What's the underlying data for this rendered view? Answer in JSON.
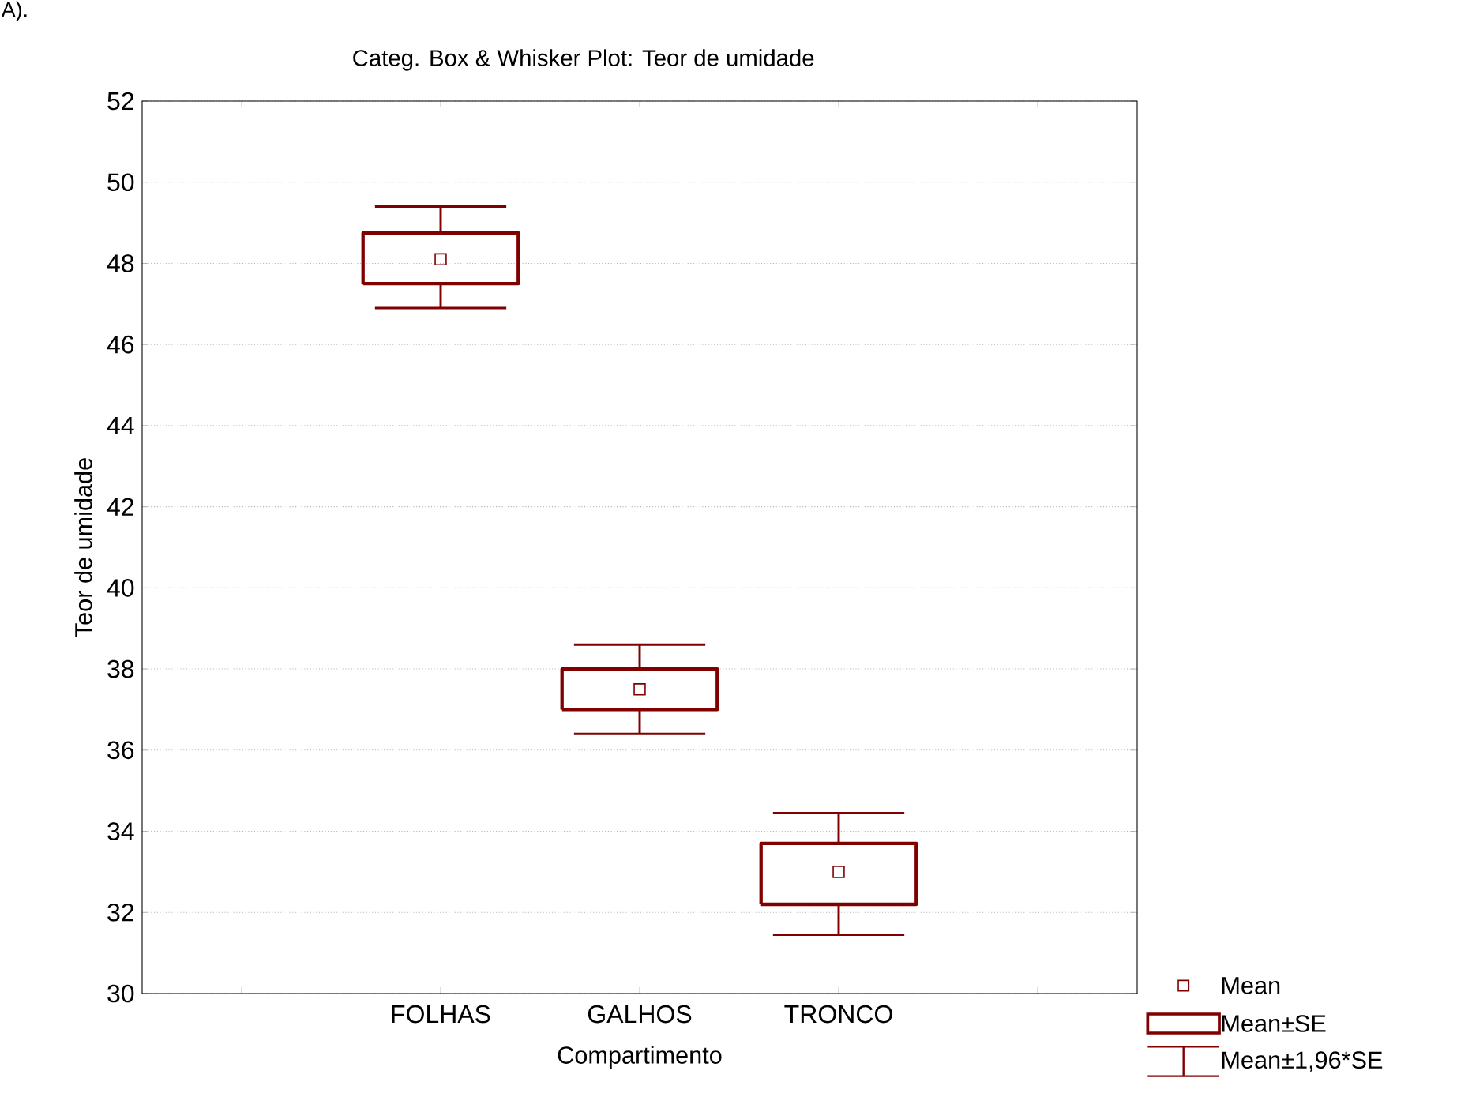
{
  "chart_data": {
    "type": "box",
    "title": "Categ. Box & Whisker Plot: Teor de umidade",
    "xlabel": "Compartimento",
    "ylabel": "Teor de umidade",
    "categories": [
      "FOLHAS",
      "GALHOS",
      "TRONCO"
    ],
    "color": "#800000",
    "boxes": [
      {
        "low": 46.9,
        "q1": 47.5,
        "q3": 48.75,
        "high": 49.4,
        "mean": 48.1
      },
      {
        "low": 36.4,
        "q1": 37.0,
        "q3": 38.0,
        "high": 38.6,
        "mean": 37.5
      },
      {
        "low": 31.45,
        "q1": 32.2,
        "q3": 33.7,
        "high": 34.45,
        "mean": 33.0
      }
    ],
    "ylim": [
      30,
      52
    ],
    "yticks": [
      30,
      32,
      34,
      36,
      38,
      40,
      42,
      44,
      46,
      48,
      50,
      52
    ],
    "grid": "y",
    "marker": "square",
    "annotations": [
      "A).",
      "Mean",
      "Mean±SE",
      "Mean±1,96*SE"
    ]
  }
}
